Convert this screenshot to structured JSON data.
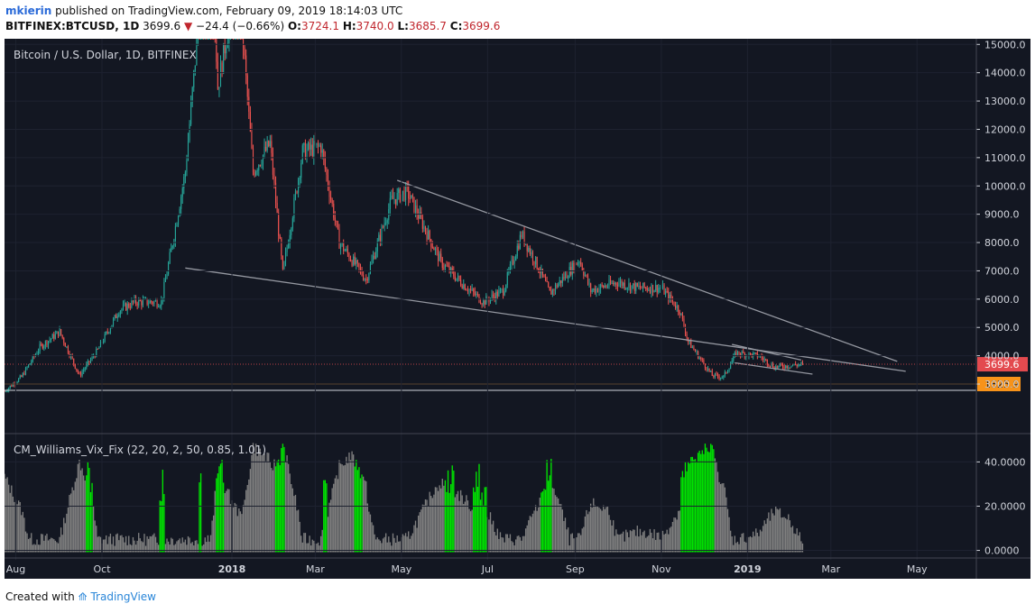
{
  "header": {
    "user": "mkierin",
    "published": "published on TradingView.com, February 09, 2019 18:14:03 UTC",
    "symbol": "BITFINEX:BTCUSD, 1D",
    "last": "3699.6",
    "change": "−24.4 (−0.66%)",
    "o_label": "O:",
    "o_val": "3724.1",
    "h_label": "H:",
    "h_val": "3740.0",
    "l_label": "L:",
    "l_val": "3685.7",
    "c_label": "C:",
    "c_val": "3699.6"
  },
  "footer": {
    "created": "Created with",
    "brand": "TradingView"
  },
  "colors": {
    "background": "#131722",
    "up": "#26a69a",
    "down": "#ef5350",
    "vix_green": "#00e600",
    "vix_gray": "#808080",
    "last_price": "#e34a4f",
    "support": "#f7931a",
    "trendline": "#9598a1",
    "text": "#d1d4dc"
  },
  "chart_data": [
    {
      "type": "candlestick",
      "title": "Bitcoin / U.S. Dollar, 1D, BITFINEX",
      "x_ticks": [
        "Aug",
        "Oct",
        "2018",
        "Mar",
        "May",
        "Jul",
        "Sep",
        "Nov",
        "2019",
        "Mar",
        "May"
      ],
      "y_ticks": [
        "3000.0",
        "4000.0",
        "5000.0",
        "6000.0",
        "7000.0",
        "8000.0",
        "9000.0",
        "10000.0",
        "11000.0",
        "12000.0",
        "13000.0",
        "14000.0",
        "15000.0"
      ],
      "ylim": [
        2300,
        15200
      ],
      "x_range": [
        "2017-07-24",
        "2019-06-12"
      ],
      "price_path": [
        [
          "2017-07-24",
          2750
        ],
        [
          "2017-08-05",
          3250
        ],
        [
          "2017-08-18",
          4300
        ],
        [
          "2017-09-01",
          4850
        ],
        [
          "2017-09-15",
          3300
        ],
        [
          "2017-09-28",
          4200
        ],
        [
          "2017-10-13",
          5600
        ],
        [
          "2017-10-24",
          5900
        ],
        [
          "2017-11-12",
          5900
        ],
        [
          "2017-11-20",
          8000
        ],
        [
          "2017-11-29",
          10500
        ],
        [
          "2017-12-07",
          15000
        ],
        [
          "2017-12-17",
          19000
        ],
        [
          "2017-12-22",
          13500
        ],
        [
          "2017-12-28",
          15200
        ],
        [
          "2018-01-06",
          17000
        ],
        [
          "2018-01-16",
          10500
        ],
        [
          "2018-01-28",
          11500
        ],
        [
          "2018-02-06",
          6900
        ],
        [
          "2018-02-20",
          11200
        ],
        [
          "2018-03-05",
          11400
        ],
        [
          "2018-03-18",
          8000
        ],
        [
          "2018-04-06",
          6700
        ],
        [
          "2018-04-24",
          9500
        ],
        [
          "2018-05-05",
          9800
        ],
        [
          "2018-05-29",
          7300
        ],
        [
          "2018-06-12",
          6600
        ],
        [
          "2018-06-28",
          5900
        ],
        [
          "2018-07-12",
          6300
        ],
        [
          "2018-07-25",
          8300
        ],
        [
          "2018-08-07",
          7000
        ],
        [
          "2018-08-14",
          6200
        ],
        [
          "2018-09-04",
          7400
        ],
        [
          "2018-09-12",
          6300
        ],
        [
          "2018-10-01",
          6600
        ],
        [
          "2018-10-15",
          6400
        ],
        [
          "2018-11-01",
          6400
        ],
        [
          "2018-11-14",
          5600
        ],
        [
          "2018-11-20",
          4500
        ],
        [
          "2018-12-07",
          3300
        ],
        [
          "2018-12-15",
          3250
        ],
        [
          "2018-12-24",
          4100
        ],
        [
          "2019-01-09",
          4000
        ],
        [
          "2019-01-20",
          3600
        ],
        [
          "2019-02-09",
          3699.6
        ]
      ],
      "last_price": "3699.6",
      "support_level": "1825.9",
      "trendlines": [
        {
          "name": "upper",
          "from": [
            "2018-04-28",
            10200
          ],
          "to": [
            "2019-04-17",
            3800
          ]
        },
        {
          "name": "lower",
          "from": [
            "2017-11-29",
            7100
          ],
          "to": [
            "2019-04-23",
            3450
          ]
        },
        {
          "name": "small-upper",
          "from": [
            "2018-12-21",
            4400
          ],
          "to": [
            "2019-02-08",
            3850
          ]
        },
        {
          "name": "small-lower",
          "from": [
            "2018-12-23",
            3750
          ],
          "to": [
            "2019-02-16",
            3350
          ]
        }
      ]
    },
    {
      "type": "bar",
      "title": "CM_Williams_Vix_Fix (22, 20, 2, 50, 0.85, 1.01)",
      "y_ticks": [
        "0.0000",
        "20.0000",
        "40.0000"
      ],
      "ylim": [
        -1,
        52
      ],
      "green_periods": [
        [
          "2017-09-20",
          "2017-09-24"
        ],
        [
          "2017-11-11",
          "2017-11-14"
        ],
        [
          "2017-12-09",
          "2017-12-10"
        ],
        [
          "2017-12-21",
          "2017-12-26"
        ],
        [
          "2018-02-01",
          "2018-02-07"
        ],
        [
          "2018-03-07",
          "2018-03-09"
        ],
        [
          "2018-03-29",
          "2018-04-03"
        ],
        [
          "2018-06-01",
          "2018-06-07"
        ],
        [
          "2018-06-21",
          "2018-06-30"
        ],
        [
          "2018-08-08",
          "2018-08-15"
        ],
        [
          "2018-11-15",
          "2018-12-08"
        ]
      ]
    }
  ]
}
